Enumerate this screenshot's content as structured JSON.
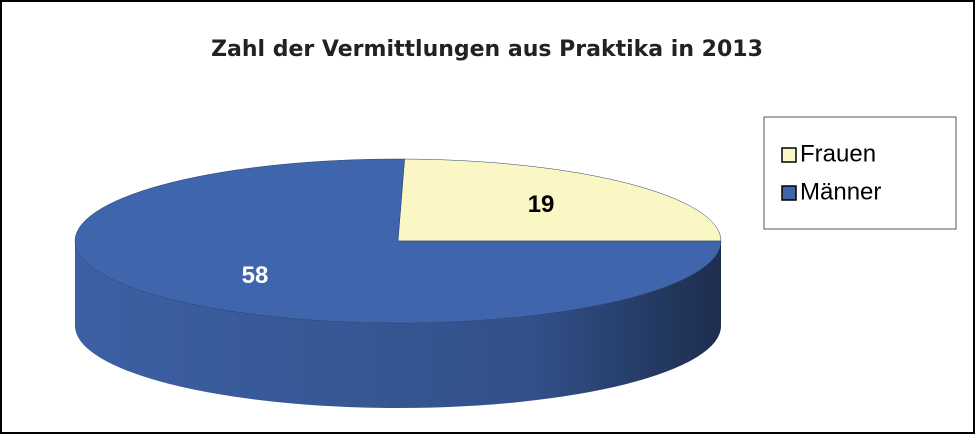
{
  "chart_data": {
    "type": "pie",
    "title": "Zahl der Vermittlungen aus Praktika in 2013",
    "categories": [
      "Frauen",
      "Männer"
    ],
    "values": [
      19,
      58
    ],
    "colors": [
      "#fbf7c4",
      "#3f65ad"
    ],
    "legend": "right"
  }
}
